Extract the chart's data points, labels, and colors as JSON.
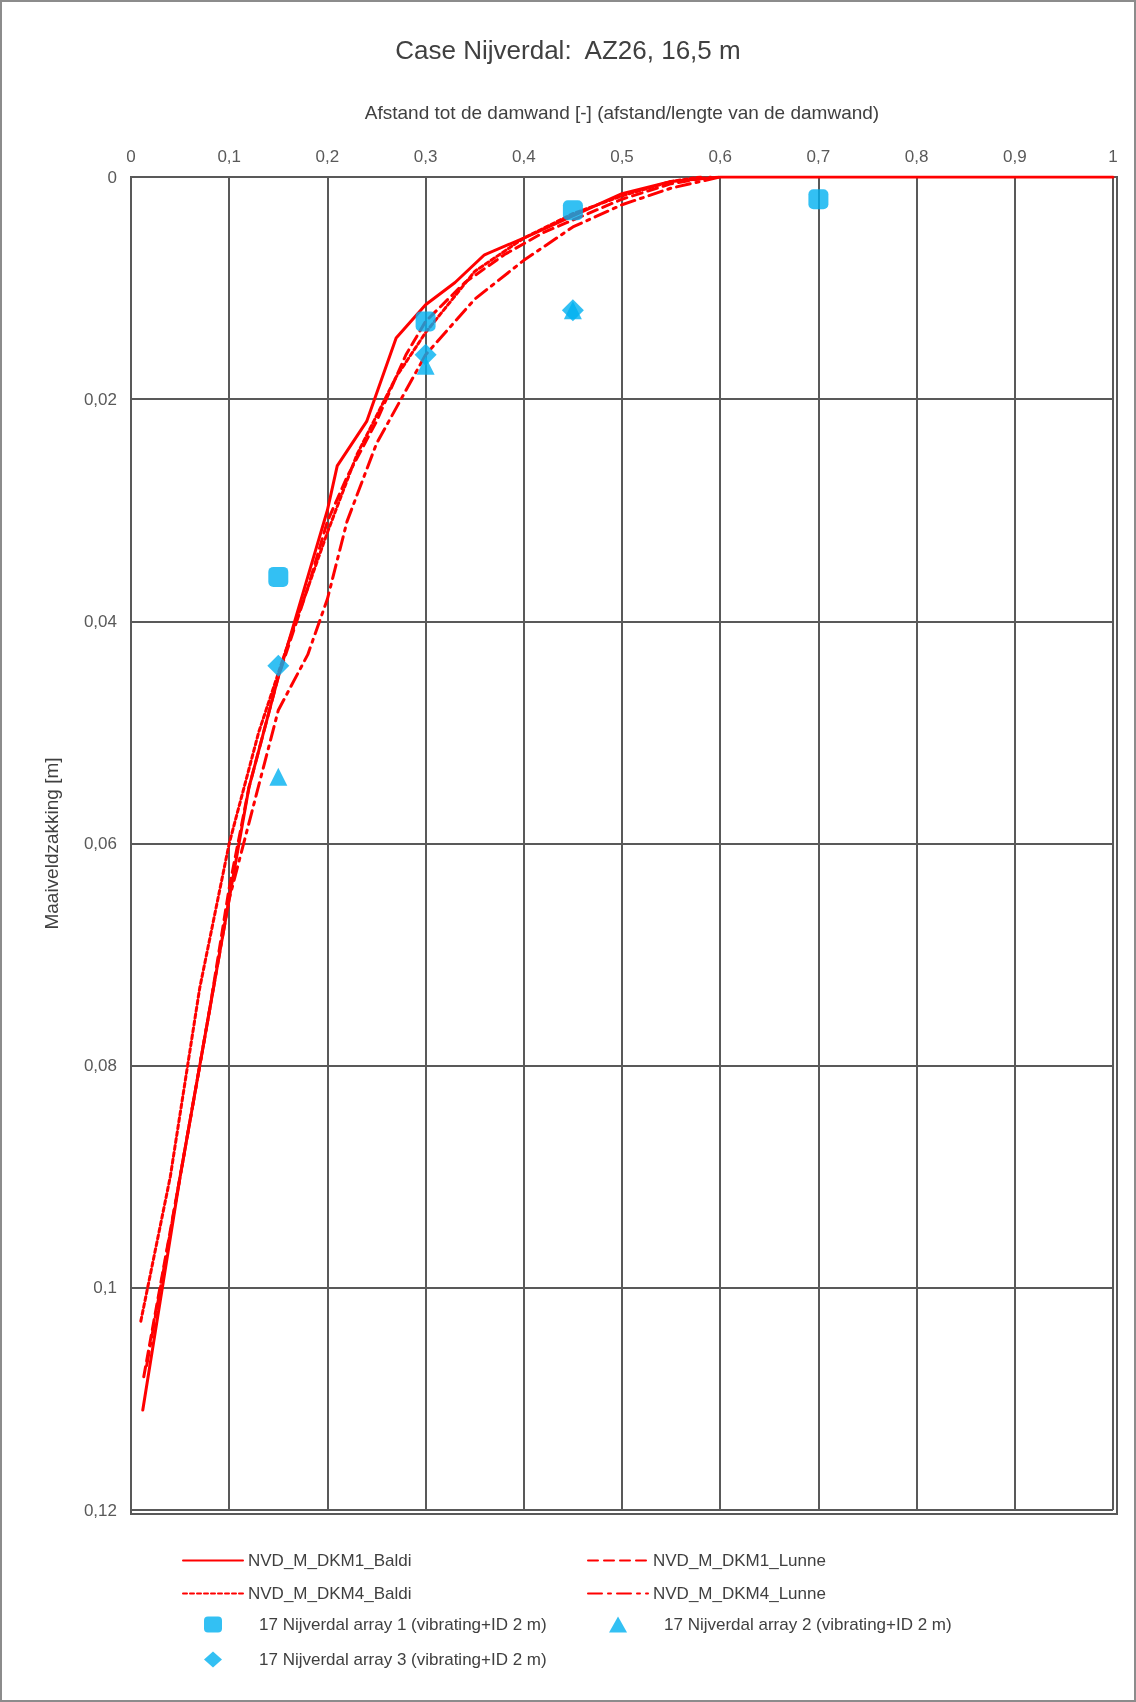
{
  "chart_data": {
    "type": "line",
    "title": "Case Nijverdal:  AZ26, 16,5 m",
    "xlabel": "Afstand tot de damwand [-] (afstand/lengte van de damwand)",
    "ylabel": "Maaiveldzakking [m]",
    "xlim": [
      0,
      1
    ],
    "ylim": [
      0.12,
      0
    ],
    "xticks": [
      {
        "value": 0,
        "label": "0"
      },
      {
        "value": 0.1,
        "label": "0,1"
      },
      {
        "value": 0.2,
        "label": "0,2"
      },
      {
        "value": 0.3,
        "label": "0,3"
      },
      {
        "value": 0.4,
        "label": "0,4"
      },
      {
        "value": 0.5,
        "label": "0,5"
      },
      {
        "value": 0.6,
        "label": "0,6"
      },
      {
        "value": 0.7,
        "label": "0,7"
      },
      {
        "value": 0.8,
        "label": "0,8"
      },
      {
        "value": 0.9,
        "label": "0,9"
      },
      {
        "value": 1,
        "label": "1"
      }
    ],
    "yticks": [
      {
        "value": 0,
        "label": "0"
      },
      {
        "value": 0.02,
        "label": "0,02"
      },
      {
        "value": 0.04,
        "label": "0,04"
      },
      {
        "value": 0.06,
        "label": "0,06"
      },
      {
        "value": 0.08,
        "label": "0,08"
      },
      {
        "value": 0.1,
        "label": "0,1"
      },
      {
        "value": 0.12,
        "label": "0,12"
      }
    ],
    "grid": true,
    "legend": "bottom",
    "series": [
      {
        "name": "NVD_M_DKM1_Baldi",
        "color": "#ff0000",
        "line_style": "solid",
        "marker": "none",
        "x": [
          0.012,
          0.05,
          0.08,
          0.1,
          0.12,
          0.15,
          0.18,
          0.2,
          0.21,
          0.24,
          0.27,
          0.3,
          0.33,
          0.36,
          0.4,
          0.45,
          0.5,
          0.55,
          0.6,
          1
        ],
        "values": [
          0.111,
          0.09,
          0.075,
          0.065,
          0.055,
          0.045,
          0.036,
          0.03,
          0.026,
          0.022,
          0.0145,
          0.0115,
          0.0095,
          0.007,
          0.0055,
          0.0035,
          0.0015,
          0.0004,
          0,
          0
        ]
      },
      {
        "name": "NVD_M_DKM1_Lunne",
        "color": "#ff0000",
        "line_style": "dashed",
        "marker": "none",
        "x": [
          0.013,
          0.05,
          0.08,
          0.1,
          0.12,
          0.15,
          0.18,
          0.2,
          0.22,
          0.25,
          0.28,
          0.3,
          0.34,
          0.38,
          0.42,
          0.46,
          0.5,
          0.55,
          0.59
        ],
        "values": [
          0.108,
          0.09,
          0.075,
          0.064,
          0.055,
          0.045,
          0.037,
          0.031,
          0.027,
          0.022,
          0.016,
          0.013,
          0.0095,
          0.007,
          0.005,
          0.0035,
          0.002,
          0.0006,
          0
        ]
      },
      {
        "name": "NVD_M_DKM4_Baldi",
        "color": "#ff0000",
        "line_style": "dotted",
        "marker": "none",
        "x": [
          0.01,
          0.04,
          0.07,
          0.1,
          0.13,
          0.16,
          0.2,
          0.23,
          0.27,
          0.3,
          0.35,
          0.4,
          0.45,
          0.5,
          0.55,
          0.58
        ],
        "values": [
          0.103,
          0.09,
          0.073,
          0.06,
          0.05,
          0.042,
          0.032,
          0.025,
          0.018,
          0.014,
          0.0085,
          0.0055,
          0.0033,
          0.0017,
          0.0004,
          0
        ]
      },
      {
        "name": "NVD_M_DKM4_Lunne",
        "color": "#ff0000",
        "line_style": "dashdot",
        "marker": "none",
        "x": [
          0.016,
          0.05,
          0.1,
          0.15,
          0.18,
          0.2,
          0.22,
          0.25,
          0.3,
          0.35,
          0.4,
          0.45,
          0.5,
          0.55,
          0.6
        ],
        "values": [
          0.107,
          0.09,
          0.065,
          0.048,
          0.043,
          0.038,
          0.031,
          0.024,
          0.016,
          0.011,
          0.0075,
          0.0045,
          0.0025,
          0.001,
          0
        ]
      },
      {
        "name": "17 Nijverdal array 1 (vibrating+ID 2 m)",
        "type": "scatter",
        "color": "#00b0f0",
        "marker": "square",
        "x": [
          0.15,
          0.3,
          0.45,
          0.7
        ],
        "values": [
          0.036,
          0.013,
          0.003,
          0.002
        ]
      },
      {
        "name": "17 Nijverdal array 2 (vibrating+ID 2 m)",
        "type": "scatter",
        "color": "#00b0f0",
        "marker": "triangle",
        "x": [
          0.15,
          0.3,
          0.45
        ],
        "values": [
          0.054,
          0.017,
          0.012
        ]
      },
      {
        "name": "17 Nijverdal array 3 (vibrating+ID 2 m)",
        "type": "scatter",
        "color": "#00b0f0",
        "marker": "diamond",
        "x": [
          0.15,
          0.3,
          0.45
        ],
        "values": [
          0.044,
          0.016,
          0.012
        ]
      }
    ]
  }
}
